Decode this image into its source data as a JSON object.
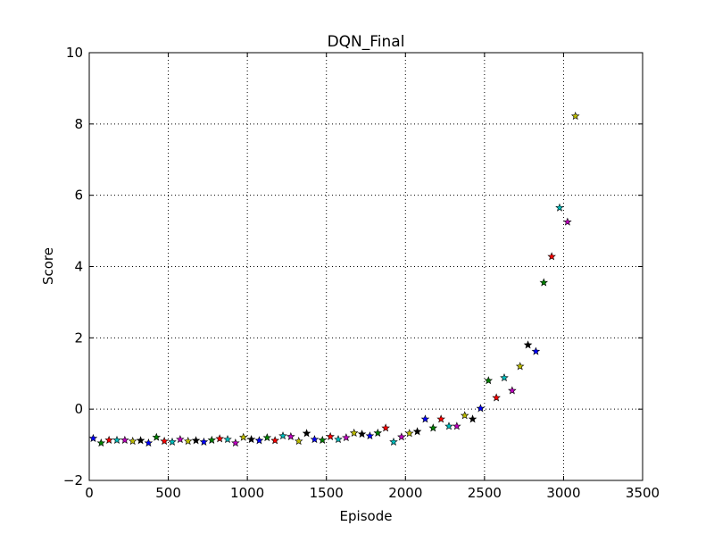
{
  "chart_data": {
    "type": "scatter",
    "title": "DQN_Final",
    "xlabel": "Episode",
    "ylabel": "Score",
    "xlim": [
      0,
      3500
    ],
    "ylim": [
      -2,
      10
    ],
    "xticks": [
      0,
      500,
      1000,
      1500,
      2000,
      2500,
      3000,
      3500
    ],
    "yticks": [
      -2,
      0,
      2,
      4,
      6,
      8,
      10
    ],
    "grid": true,
    "marker": "star",
    "colors": [
      "#0000ff",
      "#008000",
      "#ff0000",
      "#00bfbf",
      "#bf00bf",
      "#bfbf00",
      "#000000"
    ],
    "points": [
      {
        "x": 25,
        "y": -0.82
      },
      {
        "x": 75,
        "y": -0.95
      },
      {
        "x": 125,
        "y": -0.87
      },
      {
        "x": 175,
        "y": -0.87
      },
      {
        "x": 225,
        "y": -0.87
      },
      {
        "x": 275,
        "y": -0.9
      },
      {
        "x": 325,
        "y": -0.88
      },
      {
        "x": 375,
        "y": -0.95
      },
      {
        "x": 425,
        "y": -0.79
      },
      {
        "x": 475,
        "y": -0.9
      },
      {
        "x": 525,
        "y": -0.92
      },
      {
        "x": 575,
        "y": -0.85
      },
      {
        "x": 625,
        "y": -0.9
      },
      {
        "x": 675,
        "y": -0.88
      },
      {
        "x": 725,
        "y": -0.92
      },
      {
        "x": 775,
        "y": -0.87
      },
      {
        "x": 825,
        "y": -0.83
      },
      {
        "x": 875,
        "y": -0.85
      },
      {
        "x": 925,
        "y": -0.95
      },
      {
        "x": 975,
        "y": -0.79
      },
      {
        "x": 1025,
        "y": -0.85
      },
      {
        "x": 1075,
        "y": -0.88
      },
      {
        "x": 1125,
        "y": -0.8
      },
      {
        "x": 1175,
        "y": -0.88
      },
      {
        "x": 1225,
        "y": -0.75
      },
      {
        "x": 1275,
        "y": -0.77
      },
      {
        "x": 1325,
        "y": -0.9
      },
      {
        "x": 1375,
        "y": -0.68
      },
      {
        "x": 1425,
        "y": -0.85
      },
      {
        "x": 1475,
        "y": -0.87
      },
      {
        "x": 1525,
        "y": -0.77
      },
      {
        "x": 1575,
        "y": -0.85
      },
      {
        "x": 1625,
        "y": -0.8
      },
      {
        "x": 1675,
        "y": -0.67
      },
      {
        "x": 1725,
        "y": -0.7
      },
      {
        "x": 1775,
        "y": -0.75
      },
      {
        "x": 1825,
        "y": -0.67
      },
      {
        "x": 1875,
        "y": -0.53
      },
      {
        "x": 1925,
        "y": -0.92
      },
      {
        "x": 1975,
        "y": -0.78
      },
      {
        "x": 2025,
        "y": -0.68
      },
      {
        "x": 2075,
        "y": -0.63
      },
      {
        "x": 2125,
        "y": -0.28
      },
      {
        "x": 2175,
        "y": -0.53
      },
      {
        "x": 2225,
        "y": -0.28
      },
      {
        "x": 2275,
        "y": -0.48
      },
      {
        "x": 2325,
        "y": -0.48
      },
      {
        "x": 2375,
        "y": -0.18
      },
      {
        "x": 2425,
        "y": -0.28
      },
      {
        "x": 2475,
        "y": 0.02
      },
      {
        "x": 2525,
        "y": 0.8
      },
      {
        "x": 2575,
        "y": 0.32
      },
      {
        "x": 2625,
        "y": 0.88
      },
      {
        "x": 2675,
        "y": 0.52
      },
      {
        "x": 2725,
        "y": 1.2
      },
      {
        "x": 2775,
        "y": 1.8
      },
      {
        "x": 2825,
        "y": 1.62
      },
      {
        "x": 2875,
        "y": 3.55
      },
      {
        "x": 2925,
        "y": 4.28
      },
      {
        "x": 2975,
        "y": 5.65
      },
      {
        "x": 3025,
        "y": 5.25
      },
      {
        "x": 3075,
        "y": 8.22
      }
    ]
  }
}
